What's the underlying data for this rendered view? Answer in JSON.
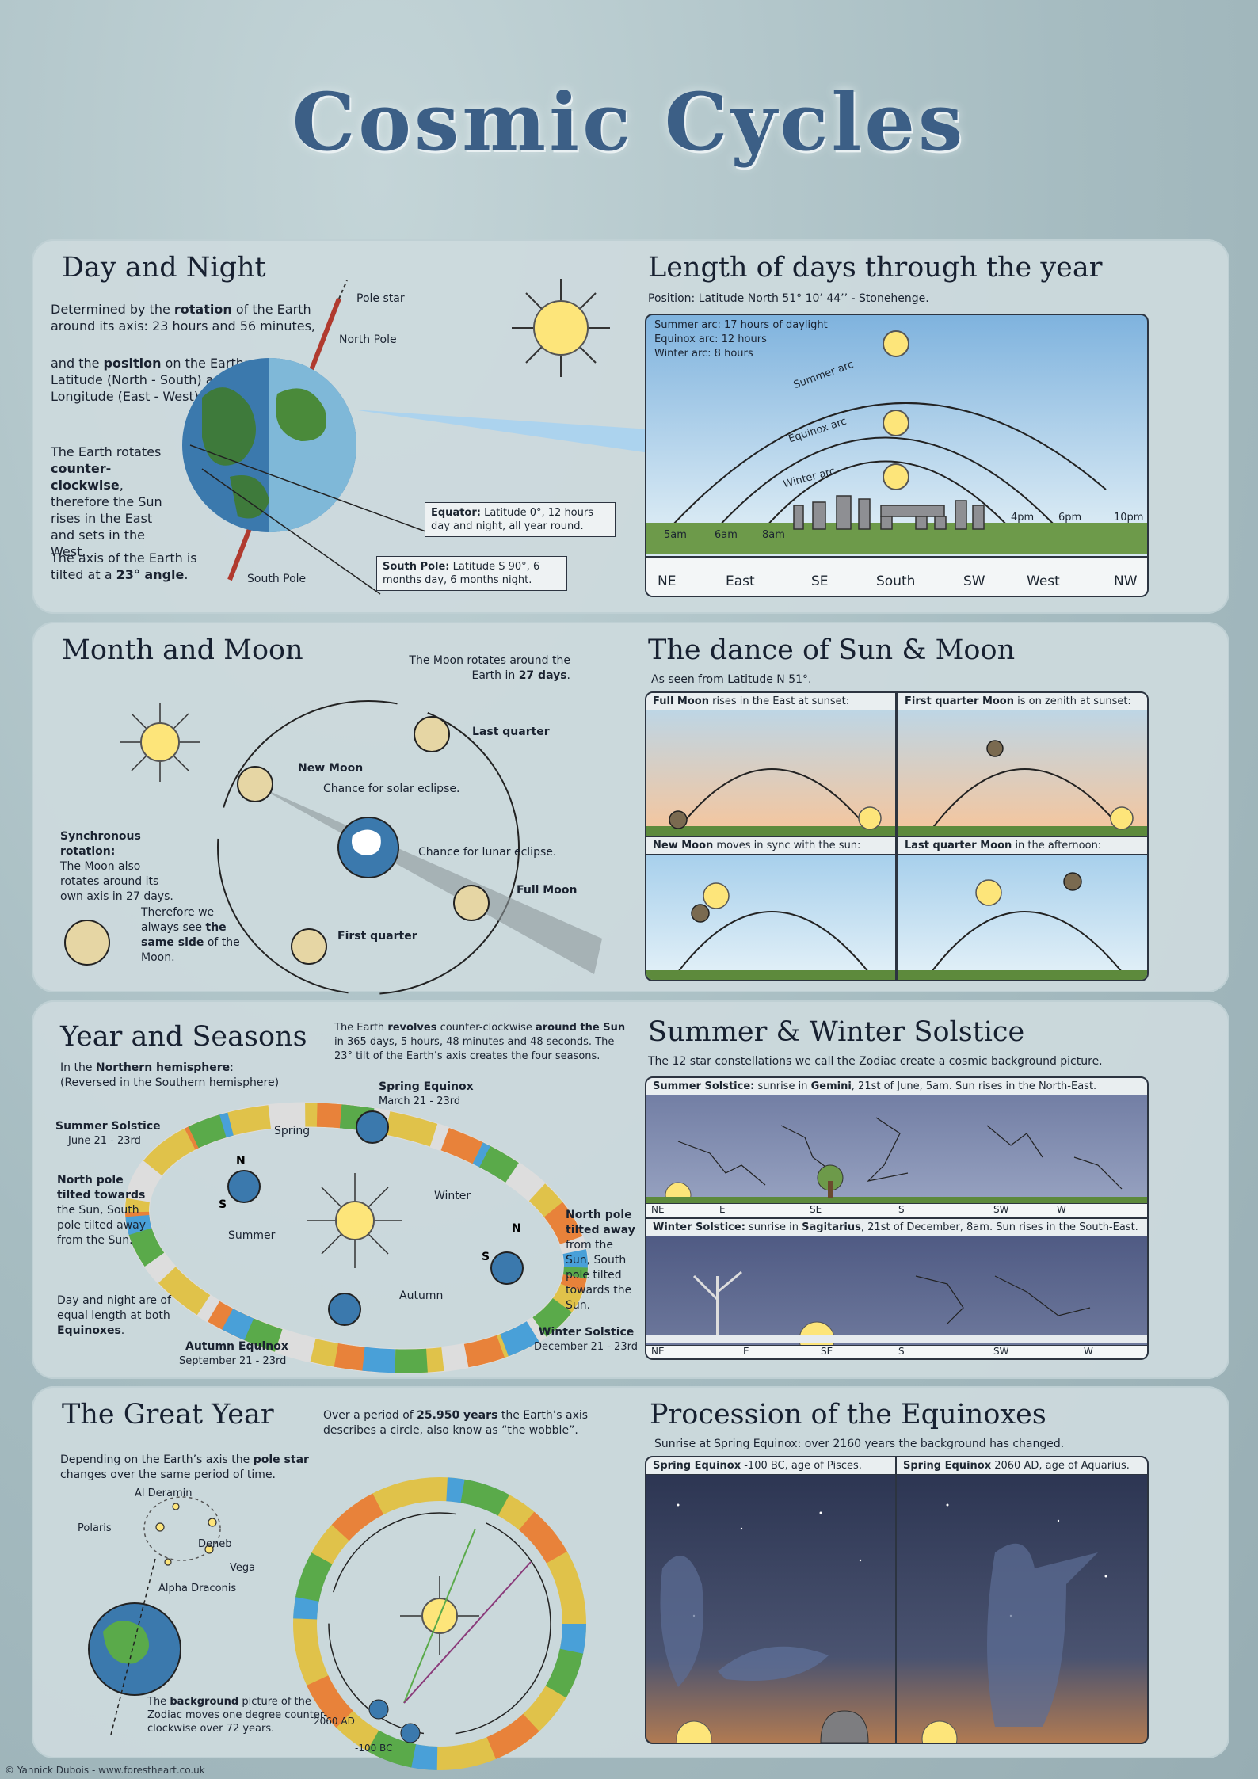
{
  "page_title": "Cosmic Cycles",
  "credit": "© Yannick Dubois - www.forestheart.co.uk",
  "day_night": {
    "title": "Day and Night",
    "p1_a": "Determined by the ",
    "p1_b": "rotation",
    "p1_c": " of the Earth around its axis: 23 hours and 56 minutes,",
    "p2_a": "and the ",
    "p2_b": "position",
    "p2_c": " on the Earth: Latitude (North - South) and Longitude (East - West).",
    "p3_a": "The Earth rotates ",
    "p3_b": "counter-clockwise",
    "p3_c": ", therefore the Sun rises in the East and sets in the West.",
    "p4_a": "The axis of the Earth is tilted at a ",
    "p4_b": "23° angle",
    "p4_c": ".",
    "pole_star": "Pole star",
    "north_pole": "North Pole",
    "south_pole": "South Pole",
    "equator_b": "Equator:",
    "equator_t": " Latitude 0°, 12 hours day and night, all year round.",
    "southpole_b": "South Pole:",
    "southpole_t": " Latitude S 90°, 6 months day, 6 months night."
  },
  "length_days": {
    "title": "Length of days through the year",
    "position": "Position: Latitude North 51° 10’ 44’’ - Stonehenge.",
    "legend": [
      "Summer arc: 17 hours of daylight",
      "Equinox arc: 12 hours",
      "Winter arc: 8 hours"
    ],
    "arcs": [
      "Summer arc",
      "Equinox arc",
      "Winter arc"
    ],
    "times": [
      "5am",
      "6am",
      "8am",
      "4pm",
      "6pm",
      "10pm"
    ],
    "directions": [
      "NE",
      "East",
      "SE",
      "South",
      "SW",
      "West",
      "NW"
    ]
  },
  "month_moon": {
    "title": "Month and Moon",
    "rotates_a": "The Moon rotates around the Earth in ",
    "rotates_b": "27 days",
    "rotates_c": ".",
    "last_quarter": "Last quarter",
    "new_moon": "New Moon",
    "solar": "Chance for solar eclipse.",
    "lunar": "Chance for lunar eclipse.",
    "full_moon": "Full Moon",
    "first_quarter": "First quarter",
    "sync_b": "Synchronous rotation:",
    "sync_t": "The Moon also rotates around its own axis in 27 days.",
    "same_a": "Therefore we always see ",
    "same_b": "the same side",
    "same_c": " of the Moon."
  },
  "dance": {
    "title": "The dance of Sun & Moon",
    "subtitle": "As seen from Latitude N 51°.",
    "panels": [
      {
        "b": "Full Moon",
        "t": " rises in the East at sunset:"
      },
      {
        "b": "First quarter Moon",
        "t": " is on zenith at sunset:"
      },
      {
        "b": "New Moon",
        "t": " moves in sync with the sun:"
      },
      {
        "b": "Last quarter Moon",
        "t": " in the afternoon:"
      }
    ]
  },
  "year_seasons": {
    "title": "Year and Seasons",
    "revolves_a": "The Earth ",
    "revolves_b": "revolves",
    "revolves_c": " counter-clockwise ",
    "revolves_d": "around the Sun",
    "revolves_e": " in 365 days, 5 hours, 48 minutes and 48 seconds. The 23° tilt of the Earth’s axis creates the four seasons.",
    "north_a": "In the ",
    "north_b": "Northern hemisphere",
    "north_c": ":",
    "reversed": "(Reversed in the Southern hemisphere)",
    "spring_eq": "Spring Equinox",
    "spring_date": "March 21 - 23rd",
    "summer_sol": "Summer Solstice",
    "summer_date": "June 21 - 23rd",
    "autumn_eq": "Autumn Equinox",
    "autumn_date": "September 21 - 23rd",
    "winter_sol": "Winter Solstice",
    "winter_date": "December 21 - 23rd",
    "seasons": [
      "Spring",
      "Summer",
      "Autumn",
      "Winter"
    ],
    "towards_b": "North pole tilted towards",
    "towards_t": "the Sun, South pole tilted away from the Sun.",
    "away_b": "North pole tilted away",
    "away_t": "from the Sun, South pole tilted towards the Sun.",
    "equal_a": "Day and night are of equal length at both ",
    "equal_b": "Equinoxes",
    "equal_c": "."
  },
  "solstice": {
    "title": "Summer & Winter Solstice",
    "subtitle": "The 12 star constellations we call the Zodiac create a cosmic background picture.",
    "summer_cap_b": "Summer Solstice:",
    "summer_cap_a": " sunrise in ",
    "summer_cap_c": "Gemini",
    "summer_cap_d": ", 21st of June, 5am. Sun rises in the North-East.",
    "winter_cap_b": "Winter Solstice:",
    "winter_cap_a": " sunrise in ",
    "winter_cap_c": "Sagitarius",
    "winter_cap_d": ", 21st of December, 8am. Sun rises in the South-East.",
    "directions": [
      "NE",
      "E",
      "SE",
      "S",
      "SW",
      "W"
    ]
  },
  "great_year": {
    "title": "The Great Year",
    "wobble_a": "Over a period of ",
    "wobble_b": "25.950 years",
    "wobble_c": " the Earth’s axis describes a circle, also know as “the wobble”.",
    "pole_a": "Depending on the Earth’s axis the ",
    "pole_b": "pole star",
    "pole_c": " changes over the same period of time.",
    "stars": [
      "Al Deramin",
      "Polaris",
      "Deneb",
      "Vega",
      "Alpha Draconis"
    ],
    "ad": "2060 AD",
    "bc": "-100 BC",
    "bg_a": "The ",
    "bg_b": "background",
    "bg_c": " picture of the Zodiac moves one degree counter-clockwise over 72 years."
  },
  "procession": {
    "title": "Procession of the Equinoxes",
    "subtitle": "Sunrise at Spring Equinox: over 2160 years the background has changed.",
    "cap1_b": "Spring Equinox",
    "cap1_t": " -100 BC, age of Pisces.",
    "cap2_b": "Spring Equinox",
    "cap2_t": " 2060 AD, age of Aquarius."
  },
  "zodiac_ring": [
    "♈",
    "♉",
    "♊",
    "♋",
    "♌",
    "♍",
    "♎",
    "♏",
    "♐",
    "♑",
    "♒",
    "♓"
  ],
  "colors": {
    "title": "#3c5f86",
    "panel": "#cddadd",
    "sun": "#fde57a",
    "sky": "#a8d2ef",
    "night": "#3b4566",
    "grass": "#6d9a4a"
  }
}
